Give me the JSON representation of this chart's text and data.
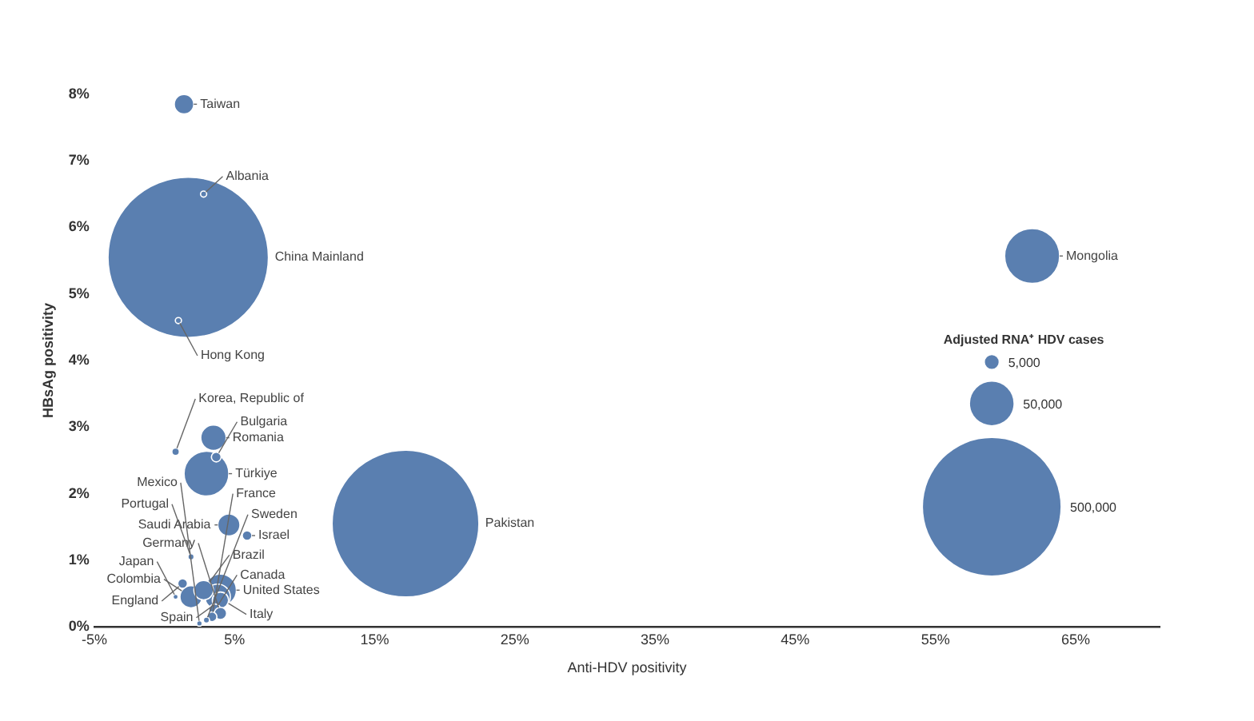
{
  "chart_data": {
    "type": "bubble",
    "xlabel": "Anti-HDV positivity",
    "ylabel": "HBsAg positivity",
    "legend_title": "Adjusted RNA⁺ HDV cases",
    "color": "#5a7fb0",
    "x": [
      1.7,
      17.2,
      61.9,
      3.0,
      4.0,
      1.4,
      3.5,
      1.9,
      3.8,
      4.6,
      2.8,
      4.0,
      3.6,
      4.0,
      3.7,
      5.9,
      1.3,
      3.4,
      2.8,
      1.0,
      0.8,
      0.8,
      1.9,
      3.0,
      2.5
    ],
    "values": [
      5.55,
      1.55,
      5.57,
      2.3,
      0.55,
      7.85,
      2.84,
      0.45,
      0.45,
      1.53,
      0.55,
      0.4,
      0.25,
      0.2,
      2.55,
      1.37,
      0.65,
      0.15,
      6.5,
      4.6,
      2.63,
      0.45,
      1.05,
      0.1,
      0.05
    ],
    "sizes": [
      680000,
      570000,
      80000,
      53000,
      27000,
      10000,
      17000,
      13000,
      17000,
      13000,
      10000,
      7000,
      4000,
      4000,
      2500,
      2500,
      2500,
      2500,
      1000,
      1000,
      1500,
      700,
      1000,
      1000,
      800
    ],
    "size_legend": [
      {
        "value": 5000,
        "label": "5,000"
      },
      {
        "value": 50000,
        "label": "50,000"
      },
      {
        "value": 500000,
        "label": "500,000"
      }
    ],
    "annotations": [
      "China Mainland",
      "Pakistan",
      {
        "text": "Mongolia",
        "x": 61.9,
        "y": 5.57
      },
      {
        "text": "Türkiye",
        "x": 3.0,
        "y": 2.3
      },
      {
        "text": "United States",
        "x": 4.0,
        "y": 0.55
      },
      {
        "text": "Taiwan",
        "x": 1.4,
        "y": 7.85
      },
      {
        "text": "Romania",
        "x": 3.5,
        "y": 2.84
      },
      {
        "text": "Colombia",
        "x": 1.9,
        "y": 0.45
      },
      {
        "text": "Italy",
        "x": 3.8,
        "y": 0.45
      },
      {
        "text": "Saudi Arabia",
        "x": 4.6,
        "y": 1.53
      },
      {
        "text": "Brazil",
        "x": 2.8,
        "y": 0.55
      },
      {
        "text": "Spain",
        "x": 4.0,
        "y": 0.4
      },
      {
        "text": "Canada",
        "x": 3.6,
        "y": 0.25
      },
      {
        "text": "Germany",
        "x": 4.0,
        "y": 0.2
      },
      {
        "text": "Bulgaria",
        "x": 3.7,
        "y": 2.55
      },
      {
        "text": "Israel",
        "x": 5.9,
        "y": 1.37
      },
      {
        "text": "England",
        "x": 1.3,
        "y": 0.65
      },
      {
        "text": "France",
        "x": 3.4,
        "y": 0.15
      },
      {
        "text": "Albania",
        "x": 2.8,
        "y": 6.5
      },
      {
        "text": "Hong Kong",
        "x": 1.0,
        "y": 4.6
      },
      {
        "text": "Korea, Republic of",
        "x": 0.8,
        "y": 2.63
      },
      {
        "text": "Japan",
        "x": 0.8,
        "y": 0.45
      },
      {
        "text": "Portugal",
        "x": 1.9,
        "y": 1.05
      },
      {
        "text": "Sweden",
        "x": 3.0,
        "y": 0.1
      },
      {
        "text": "Mexico",
        "x": 2.5,
        "y": 0.05
      }
    ],
    "xlim": [
      -5,
      71
    ],
    "xticks": [
      {
        "value": -5,
        "label": "-5%"
      },
      {
        "value": 5,
        "label": "5%"
      },
      {
        "value": 15,
        "label": "15%"
      },
      {
        "value": 25,
        "label": "25%"
      },
      {
        "value": 35,
        "label": "35%"
      },
      {
        "value": 45,
        "label": "45%"
      },
      {
        "value": 55,
        "label": "55%"
      },
      {
        "value": 65,
        "label": "65%"
      }
    ],
    "ylim": [
      0,
      8
    ],
    "yticks": [
      {
        "value": 0,
        "label": "0%"
      },
      {
        "value": 1,
        "label": "1%"
      },
      {
        "value": 2,
        "label": "2%"
      },
      {
        "value": 3,
        "label": "3%"
      },
      {
        "value": 4,
        "label": "4%"
      },
      {
        "value": 5,
        "label": "5%"
      },
      {
        "value": 6,
        "label": "6%"
      },
      {
        "value": 7,
        "label": "7%"
      },
      {
        "value": 8,
        "label": "8%"
      }
    ]
  }
}
